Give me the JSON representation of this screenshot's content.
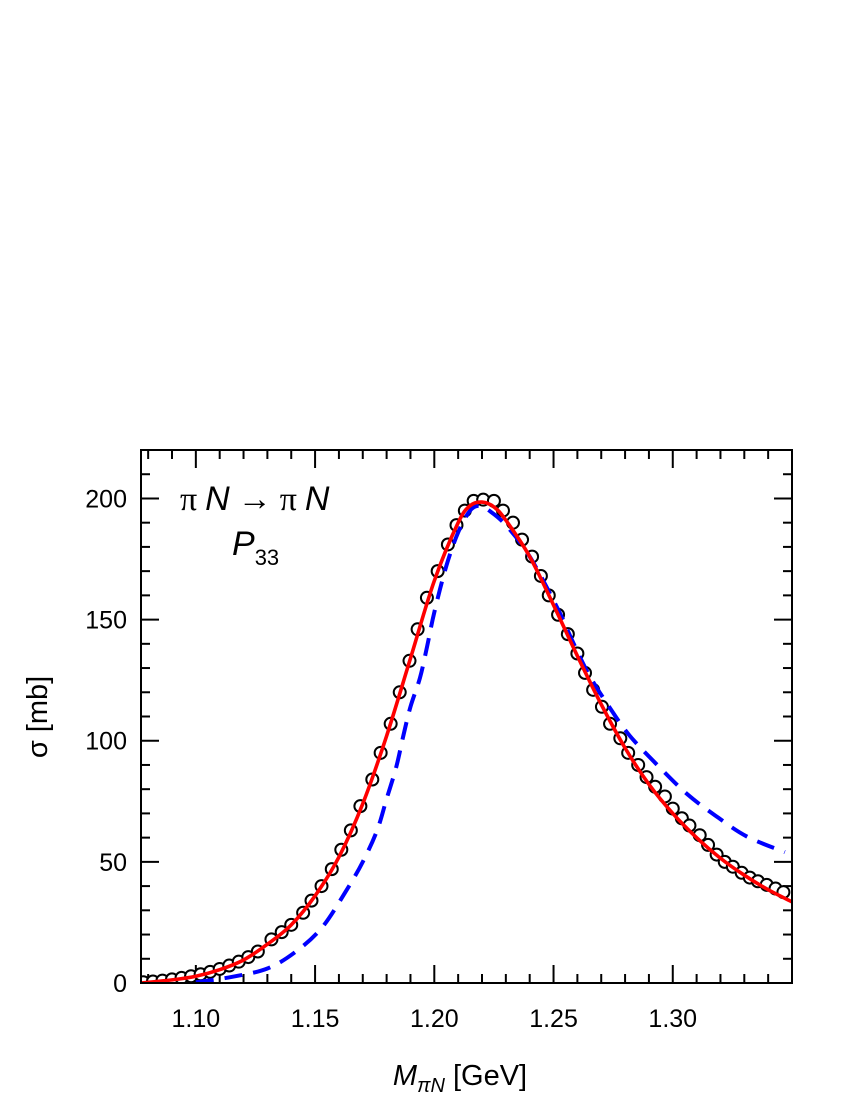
{
  "chart_data": {
    "type": "line",
    "title": "",
    "xlabel": {
      "main": "M",
      "sub": "πN",
      "unit": " [GeV]"
    },
    "ylabel": "σ [mb]",
    "xlim": [
      1.077,
      1.35
    ],
    "ylim": [
      0,
      220
    ],
    "x_ticks": [
      1.1,
      1.15,
      1.2,
      1.25,
      1.3
    ],
    "x_tick_labels": [
      "1.10",
      "1.15",
      "1.20",
      "1.25",
      "1.30"
    ],
    "x_minor_step": 0.01,
    "y_ticks": [
      0,
      50,
      100,
      150,
      200
    ],
    "y_tick_labels": [
      "0",
      "50",
      "100",
      "150",
      "200"
    ],
    "y_minor_step": 10,
    "grid": false,
    "annotation": {
      "pi1": "π",
      "n1": "N",
      "arrow": "→",
      "pi2": "π",
      "n2": "N",
      "wave": "P",
      "wave_sub": "33"
    },
    "colors": {
      "data": "#000000",
      "solid": "#ff0000",
      "dashed": "#0000ff"
    },
    "series": [
      {
        "style": "open-circles",
        "x": [
          1.078,
          1.082,
          1.086,
          1.09,
          1.094,
          1.098,
          1.102,
          1.106,
          1.11,
          1.114,
          1.118,
          1.122,
          1.126,
          1.1317,
          1.136,
          1.14,
          1.145,
          1.1485,
          1.1527,
          1.157,
          1.161,
          1.165,
          1.169,
          1.174,
          1.1775,
          1.1817,
          1.1855,
          1.1896,
          1.193,
          1.1969,
          1.2014,
          1.2057,
          1.2093,
          1.2128,
          1.2165,
          1.2205,
          1.225,
          1.2288,
          1.233,
          1.2368,
          1.241,
          1.2447,
          1.248,
          1.2519,
          1.256,
          1.26,
          1.2632,
          1.2666,
          1.2703,
          1.2737,
          1.278,
          1.2813,
          1.2855,
          1.289,
          1.2926,
          1.2967,
          1.3,
          1.3038,
          1.307,
          1.3113,
          1.3148,
          1.3184,
          1.3218,
          1.3252,
          1.3289,
          1.3323,
          1.3357,
          1.3394,
          1.3431,
          1.3464
        ],
        "y": [
          0.3,
          0.6,
          1.0,
          1.5,
          2.1,
          2.8,
          3.6,
          4.6,
          5.8,
          7.2,
          8.8,
          10.7,
          13,
          18,
          21,
          24,
          29,
          34,
          40,
          47,
          55,
          63,
          73,
          84,
          95,
          107,
          120,
          133,
          146,
          159,
          170,
          181,
          189,
          195,
          199,
          199.5,
          199,
          195,
          190,
          183,
          176,
          168,
          160,
          152,
          144,
          136,
          128,
          121,
          114,
          107,
          101,
          95,
          90,
          85,
          81,
          77,
          72,
          68,
          65,
          61,
          57,
          53,
          50,
          48,
          45.5,
          43.5,
          42,
          40.5,
          39,
          37.5
        ]
      },
      {
        "style": "solid",
        "x": [
          1.077,
          1.09,
          1.1,
          1.11,
          1.12,
          1.13,
          1.14,
          1.15,
          1.16,
          1.17,
          1.18,
          1.19,
          1.2,
          1.21,
          1.215,
          1.22,
          1.225,
          1.23,
          1.24,
          1.25,
          1.26,
          1.27,
          1.28,
          1.29,
          1.3,
          1.31,
          1.32,
          1.33,
          1.34,
          1.35
        ],
        "y": [
          0,
          1.3,
          2.8,
          5.5,
          9.5,
          16,
          24,
          36,
          52,
          74,
          102,
          134,
          166,
          190,
          197,
          198.5,
          196.5,
          191,
          176,
          156,
          135,
          115,
          97,
          82,
          70,
          60,
          51.5,
          44.5,
          38.5,
          33.5
        ]
      },
      {
        "style": "dashed",
        "x": [
          1.1,
          1.115,
          1.13,
          1.142,
          1.153,
          1.163,
          1.17,
          1.176,
          1.18,
          1.184,
          1.187,
          1.19,
          1.194,
          1.197,
          1.2,
          1.205,
          1.21,
          1.215,
          1.219,
          1.223,
          1.23,
          1.24,
          1.252,
          1.258,
          1.265,
          1.274,
          1.282,
          1.294,
          1.306,
          1.318,
          1.331,
          1.347
        ],
        "y": [
          0.3,
          2.5,
          6,
          13,
          23,
          38,
          50,
          63,
          76,
          89,
          102,
          114,
          126,
          139,
          153,
          172,
          186,
          195,
          197,
          195,
          189,
          176,
          154,
          141,
          127,
          113,
          102,
          89.5,
          78,
          69,
          60.5,
          54
        ]
      }
    ]
  }
}
